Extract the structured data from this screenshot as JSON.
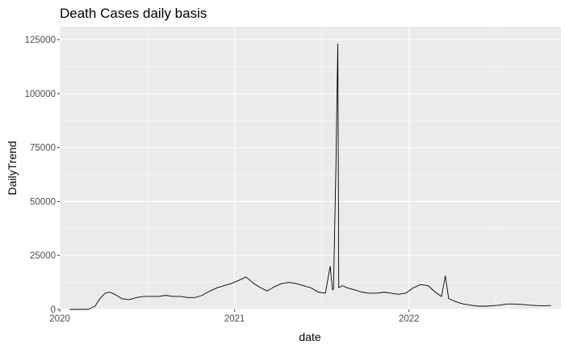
{
  "chart_data": {
    "type": "line",
    "title": "Death Cases daily basis",
    "xlabel": "date",
    "ylabel": "DailyTrend",
    "xlim": [
      "2020-01-01",
      "2022-11-15"
    ],
    "ylim": [
      0,
      131000
    ],
    "x_ticks": [
      "2020-01-01",
      "2021-01-01",
      "2022-01-01"
    ],
    "x_tick_labels": [
      "2020",
      "2021",
      "2022"
    ],
    "y_ticks": [
      0,
      25000,
      50000,
      75000,
      100000,
      125000
    ],
    "y_tick_labels": [
      "0",
      "25000",
      "50000",
      "75000",
      "100000",
      "125000"
    ],
    "grid": true,
    "legend": "none",
    "series": [
      {
        "x": [
          "2020-01-22",
          "2020-02-15",
          "2020-03-01",
          "2020-03-15",
          "2020-03-25",
          "2020-04-05",
          "2020-04-15",
          "2020-04-25",
          "2020-05-10",
          "2020-05-25",
          "2020-06-10",
          "2020-06-25",
          "2020-07-10",
          "2020-07-25",
          "2020-08-10",
          "2020-08-25",
          "2020-09-10",
          "2020-09-25",
          "2020-10-10",
          "2020-10-25",
          "2020-11-10",
          "2020-11-25",
          "2020-12-10",
          "2020-12-25",
          "2021-01-10",
          "2021-01-25",
          "2021-02-10",
          "2021-02-25",
          "2021-03-10",
          "2021-03-25",
          "2021-04-10",
          "2021-04-25",
          "2021-05-10",
          "2021-05-25",
          "2021-06-10",
          "2021-06-25",
          "2021-07-10",
          "2021-07-20",
          "2021-07-25",
          "2021-07-27",
          "2021-08-01",
          "2021-08-05",
          "2021-08-07",
          "2021-08-10",
          "2021-08-15",
          "2021-08-25",
          "2021-09-10",
          "2021-09-25",
          "2021-10-10",
          "2021-10-25",
          "2021-11-10",
          "2021-11-25",
          "2021-12-10",
          "2021-12-25",
          "2022-01-10",
          "2022-01-25",
          "2022-02-10",
          "2022-02-25",
          "2022-03-10",
          "2022-03-18",
          "2022-03-25",
          "2022-04-10",
          "2022-04-25",
          "2022-05-10",
          "2022-05-25",
          "2022-06-10",
          "2022-06-25",
          "2022-07-10",
          "2022-07-25",
          "2022-08-10",
          "2022-08-25",
          "2022-09-10",
          "2022-09-25",
          "2022-10-10",
          "2022-10-25"
        ],
        "values": [
          0,
          0,
          50,
          1500,
          5000,
          7500,
          8000,
          7000,
          5000,
          4500,
          5500,
          6000,
          6000,
          6000,
          6500,
          6000,
          6000,
          5500,
          5500,
          6500,
          8500,
          10000,
          11000,
          12000,
          13500,
          15000,
          12000,
          10000,
          8500,
          10500,
          12000,
          12500,
          12000,
          11000,
          10000,
          8000,
          7500,
          20000,
          9000,
          9500,
          66000,
          123000,
          10000,
          10500,
          11000,
          10000,
          9000,
          8000,
          7500,
          7500,
          8000,
          7500,
          7000,
          7500,
          10000,
          11500,
          11000,
          8000,
          6000,
          15500,
          5000,
          3500,
          2500,
          2000,
          1500,
          1500,
          1700,
          2000,
          2500,
          2500,
          2300,
          2000,
          1800,
          1700,
          1800
        ]
      }
    ]
  }
}
